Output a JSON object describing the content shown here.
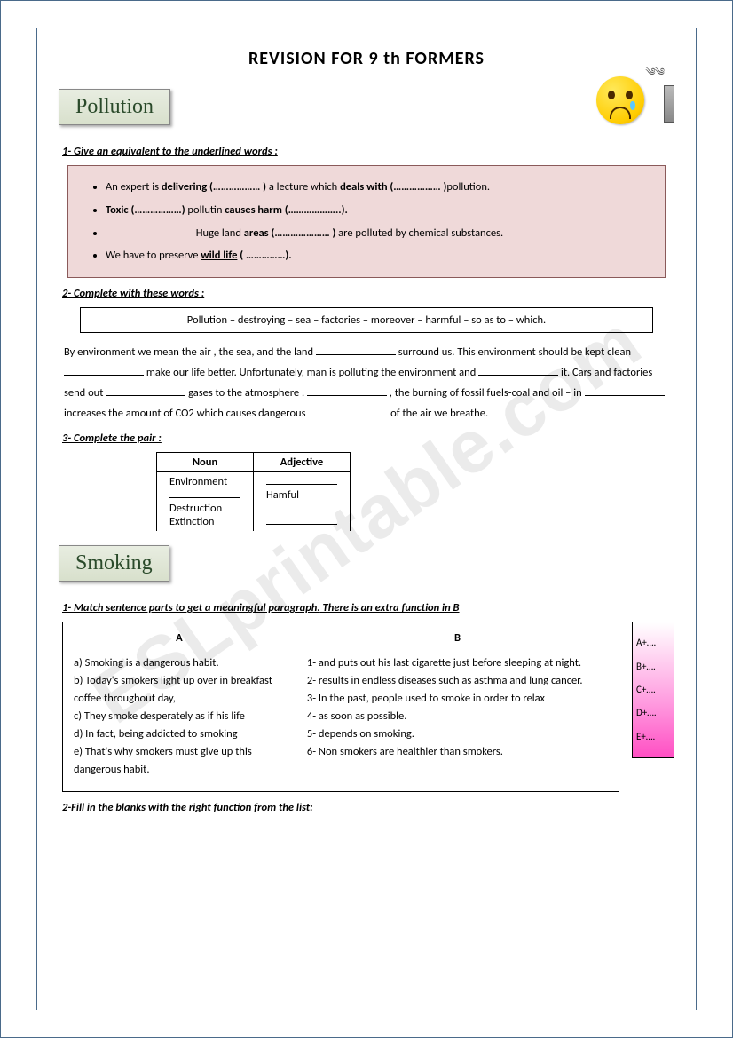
{
  "title": "REVISION  FOR  9 th  FORMERS",
  "watermark": "ESLprintable.com",
  "section1": {
    "label": "Pollution"
  },
  "q1": {
    "instr": "1- Give an equivalent to the underlined words :",
    "items": [
      "An expert is <b>delivering  (……………… )</b> a lecture which <b>deals with (……………… )</b>pollution.",
      "<b>Toxic (………………)</b> pollutin <b>causes harm   (………………..).</b>",
      "&nbsp;&nbsp;&nbsp;&nbsp;&nbsp;&nbsp;&nbsp;&nbsp;&nbsp;&nbsp;&nbsp;&nbsp;&nbsp;&nbsp;&nbsp;&nbsp;&nbsp;&nbsp;&nbsp;&nbsp;&nbsp;&nbsp;&nbsp;&nbsp;&nbsp;&nbsp;&nbsp;&nbsp;&nbsp;&nbsp;&nbsp;&nbsp;&nbsp;&nbsp;&nbsp;&nbsp;Huge land <b>areas (………………… )</b> are polluted by chemical substances.",
      "We have to preserve <b><u>wild life</u>  ( ……………).</b>"
    ]
  },
  "q2": {
    "instr": "2- Complete with these words :",
    "words": "Pollution – destroying – sea – factories – moreover – harmful – so as to – which.",
    "para_parts": [
      "By environment we mean  the air , the sea, and the land ",
      " surround us. This environment should be kept clean ",
      " make our life better. Unfortunately, man is polluting the environment and ",
      " it. Cars and factories send out ",
      " gases to the atmosphere . ",
      " , the burning of fossil fuels-coal and oil – in ",
      " increases the amount of CO2 which causes dangerous ",
      " of the air we breathe."
    ]
  },
  "q3": {
    "instr": "3- Complete the pair :",
    "head_noun": "Noun",
    "head_adj": "Adjective",
    "rows": [
      [
        "Environment",
        ""
      ],
      [
        "",
        "Hamful"
      ],
      [
        "Destruction",
        ""
      ],
      [
        "Extinction",
        ""
      ]
    ]
  },
  "section2": {
    "label": "Smoking"
  },
  "s2q1": {
    "instr_u": "1-  Match sentence parts to get a meaningful paragraph.",
    "instr_rest": " There is an extra function in B",
    "headA": "A",
    "headB": "B",
    "colA": [
      "a)  Smoking is a dangerous habit.",
      "b)  Today's smokers light up over in breakfast coffee throughout day,",
      "c) They smoke desperately as if his life",
      "d)  In fact, being addicted to smoking",
      "e)  That's why smokers must give up this dangerous habit."
    ],
    "colB": [
      "1- and puts out his last cigarette just before sleeping at night.",
      "  2- results in endless diseases such as asthma and lung cancer.",
      "  3- In the past, people used to smoke in order to relax",
      "  4- as soon as possible.",
      "  5- depends on smoking.",
      "  6- Non smokers are healthier than smokers."
    ],
    "answers": [
      "A+….",
      "B+….",
      "C+….",
      "D+….",
      "E+…."
    ]
  },
  "s2q2": {
    "instr": "2-Fill in the blanks with the right function from the list:"
  }
}
